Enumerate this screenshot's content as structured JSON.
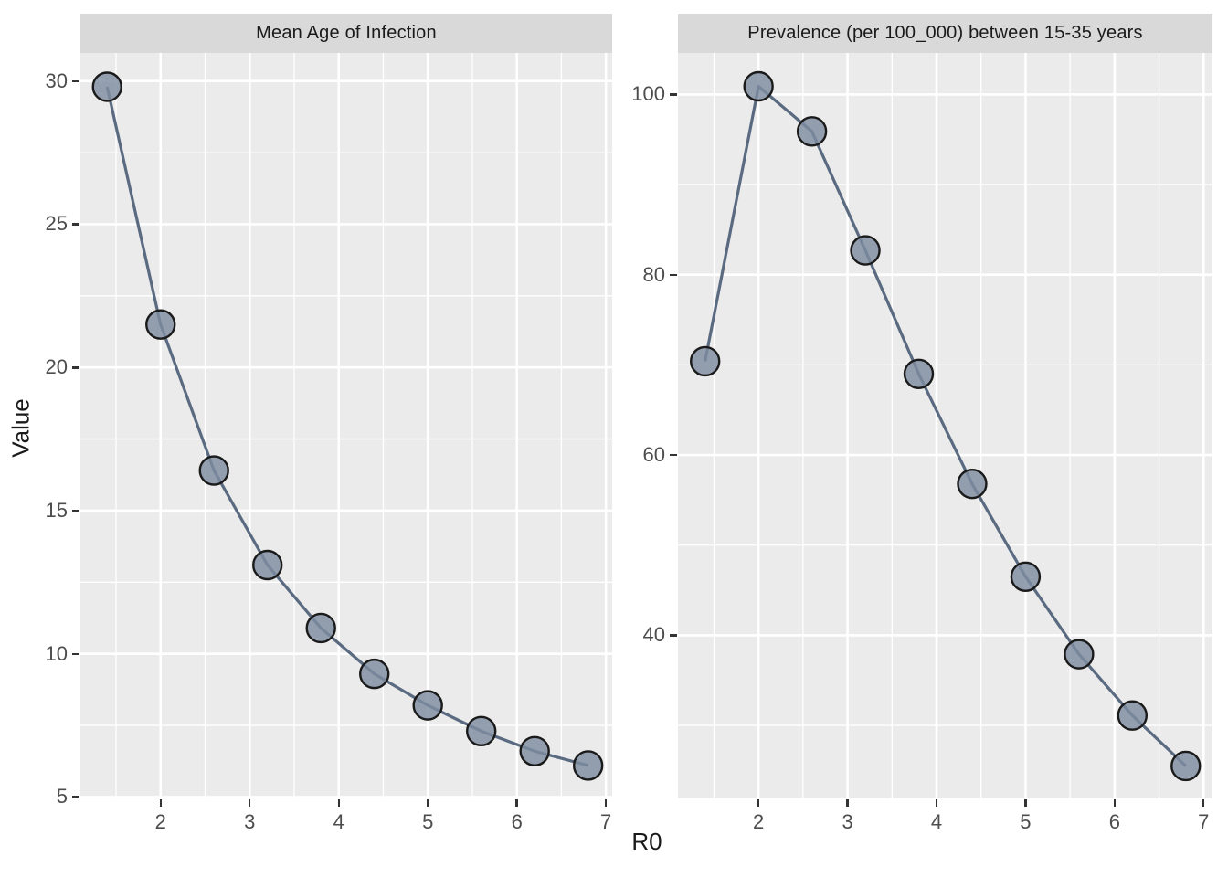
{
  "axes": {
    "x_label": "R0",
    "y_label": "Value"
  },
  "chart_data": [
    {
      "type": "line",
      "title": "Mean Age of Infection",
      "xlabel": "R0",
      "ylabel": "Value",
      "x": [
        1.4,
        2.0,
        2.6,
        3.2,
        3.8,
        4.4,
        5.0,
        5.6,
        6.2,
        6.8
      ],
      "y": [
        29.8,
        21.5,
        16.4,
        13.1,
        10.9,
        9.3,
        8.2,
        7.3,
        6.6,
        6.1
      ],
      "xlim": [
        1.1,
        7.07
      ],
      "ylim": [
        4.95,
        30.98
      ],
      "x_major_ticks": [
        2,
        3,
        4,
        5,
        6,
        7
      ],
      "y_major_ticks": [
        5,
        10,
        15,
        20,
        25,
        30
      ],
      "x_minor_ticks": [
        1.5,
        2.5,
        3.5,
        4.5,
        5.5,
        6.5
      ],
      "y_minor_ticks": [
        7.5,
        12.5,
        17.5,
        22.5,
        27.5
      ],
      "grid": "major+minor",
      "legend": "none",
      "marker": "circle"
    },
    {
      "type": "line",
      "title": "Prevalence (per 100_000) between 15-35 years",
      "xlabel": "R0",
      "ylabel": "Value",
      "x": [
        1.4,
        2.0,
        2.6,
        3.2,
        3.8,
        4.4,
        5.0,
        5.6,
        6.2,
        6.8
      ],
      "y": [
        70.4,
        100.9,
        95.9,
        82.7,
        69.0,
        56.8,
        46.5,
        37.9,
        31.1,
        25.5
      ],
      "xlim": [
        1.095,
        7.1
      ],
      "ylim": [
        21.9,
        104.6
      ],
      "x_major_ticks": [
        2,
        3,
        4,
        5,
        6,
        7
      ],
      "y_major_ticks": [
        40,
        60,
        80,
        100
      ],
      "x_minor_ticks": [
        1.5,
        2.5,
        3.5,
        4.5,
        5.5,
        6.5
      ],
      "y_minor_ticks": [
        30,
        50,
        70,
        90
      ],
      "grid": "major+minor",
      "legend": "none",
      "marker": "circle"
    }
  ],
  "style": {
    "panel_bg": "#EBEBEB",
    "strip_bg": "#D9D9D9",
    "grid_color": "#FFFFFF",
    "point_fill": "#7E8CA0",
    "point_stroke": "#1A1A1A",
    "line_color": "#5A6A80",
    "tick_label_color": "#4D4D4D",
    "tick_mark_color": "#333333"
  }
}
